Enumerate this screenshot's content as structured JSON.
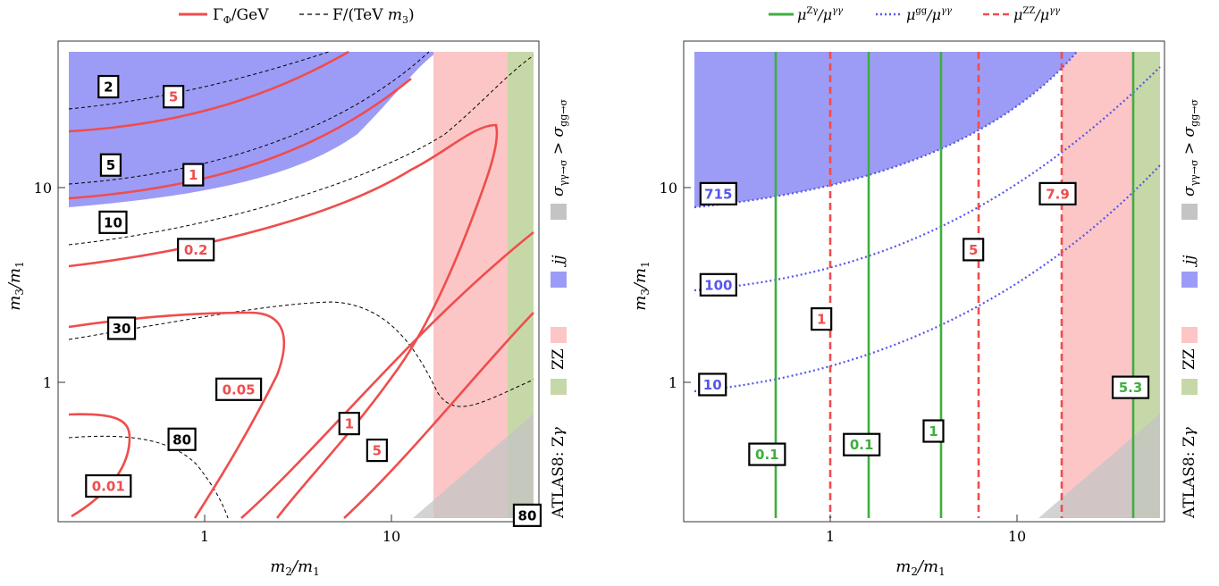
{
  "colors": {
    "red": "#ef4d4d",
    "green": "#3fae3f",
    "blue_line": "#5555ee",
    "blue_fill": "#9c9cf6",
    "pink_fill": "#fcc6c6",
    "green_fill": "#c7d8a8",
    "gray_fill": "#c4c4c4"
  },
  "chart_data": [
    {
      "type": "contour",
      "name": "left",
      "legend_top": [
        {
          "label": "ΓΦ/GeV",
          "style": "solid",
          "color": "#ef4d4d"
        },
        {
          "label": "F/(TeV m3)",
          "style": "dashed",
          "color": "#000000"
        }
      ],
      "xlabel": "m2/m1",
      "ylabel": "m3/m1",
      "xscale": "log",
      "yscale": "log",
      "xlim": [
        0.2,
        55
      ],
      "ylim": [
        0.2,
        47
      ],
      "xticks": [
        "1",
        "10"
      ],
      "yticks": [
        "1",
        "10"
      ],
      "contour_labels": [
        {
          "text": "2",
          "kind": "dashed",
          "x": 0.36,
          "y": 28
        },
        {
          "text": "5",
          "kind": "width",
          "x": 0.77,
          "y": 25
        },
        {
          "text": "5",
          "kind": "dashed",
          "x": 0.37,
          "y": 11.5
        },
        {
          "text": "1",
          "kind": "width",
          "x": 0.97,
          "y": 10.3
        },
        {
          "text": "10",
          "kind": "dashed",
          "x": 0.38,
          "y": 6.0
        },
        {
          "text": "0.2",
          "kind": "width",
          "x": 1.0,
          "y": 4.4
        },
        {
          "text": "30",
          "kind": "dashed",
          "x": 0.42,
          "y": 1.8
        },
        {
          "text": "0.05",
          "kind": "width",
          "x": 1.65,
          "y": 0.9
        },
        {
          "text": "1",
          "kind": "width",
          "x": 6.0,
          "y": 0.61
        },
        {
          "text": "80",
          "kind": "dashed",
          "x": 0.85,
          "y": 0.51
        },
        {
          "text": "5",
          "kind": "width",
          "x": 8.3,
          "y": 0.45
        },
        {
          "text": "0.01",
          "kind": "width",
          "x": 0.36,
          "y": 0.3
        },
        {
          "text": "80",
          "kind": "dashed",
          "x": 48,
          "y": 0.215
        }
      ],
      "side_legend": [
        {
          "label": "ATLAS8: Zγ",
          "color": "#c7d8a8"
        },
        {
          "label": "ZZ",
          "color": "#fcc6c6"
        },
        {
          "label": "jj",
          "color": "#9c9cf6"
        },
        {
          "label": "σγγ→σ > σgg→σ",
          "color": "#c4c4c4"
        }
      ]
    },
    {
      "type": "contour",
      "name": "right",
      "legend_top": [
        {
          "label": "μZγ/μγγ",
          "style": "solid",
          "color": "#3fae3f"
        },
        {
          "label": "μgg/μγγ",
          "style": "dotted",
          "color": "#5555ee"
        },
        {
          "label": "μZZ/μγγ",
          "style": "dashed",
          "color": "#ef4d4d"
        }
      ],
      "xlabel": "m2/m1",
      "ylabel": "m3/m1",
      "xscale": "log",
      "yscale": "log",
      "xlim": [
        0.2,
        55
      ],
      "ylim": [
        0.2,
        47
      ],
      "xticks": [
        "1",
        "10"
      ],
      "yticks": [
        "1",
        "10"
      ],
      "green_lines_x": [
        0.53,
        1.6,
        3.7,
        37
      ],
      "red_dashed_x": [
        1.0,
        5.9,
        15.8
      ],
      "contour_labels": [
        {
          "text": "715",
          "kind": "blue",
          "x": 0.3,
          "y": 8.3
        },
        {
          "text": "100",
          "kind": "blue",
          "x": 0.3,
          "y": 2.95
        },
        {
          "text": "10",
          "kind": "blue",
          "x": 0.28,
          "y": 0.95
        },
        {
          "text": "1",
          "kind": "red",
          "x": 1.0,
          "y": 2.0
        },
        {
          "text": "5",
          "kind": "red",
          "x": 5.9,
          "y": 4.4
        },
        {
          "text": "7.9",
          "kind": "red",
          "x": 15.8,
          "y": 8.3
        },
        {
          "text": "0.1",
          "kind": "green",
          "x": 0.53,
          "y": 0.43
        },
        {
          "text": "0.1",
          "kind": "green",
          "x": 1.6,
          "y": 0.48
        },
        {
          "text": "1",
          "kind": "green",
          "x": 3.7,
          "y": 0.56
        },
        {
          "text": "5.3",
          "kind": "green",
          "x": 37,
          "y": 0.92
        }
      ],
      "side_legend": [
        {
          "label": "ATLAS8: Zγ",
          "color": "#c7d8a8"
        },
        {
          "label": "ZZ",
          "color": "#fcc6c6"
        },
        {
          "label": "jj",
          "color": "#9c9cf6"
        },
        {
          "label": "σγγ→σ > σgg→σ",
          "color": "#c4c4c4"
        }
      ]
    }
  ]
}
